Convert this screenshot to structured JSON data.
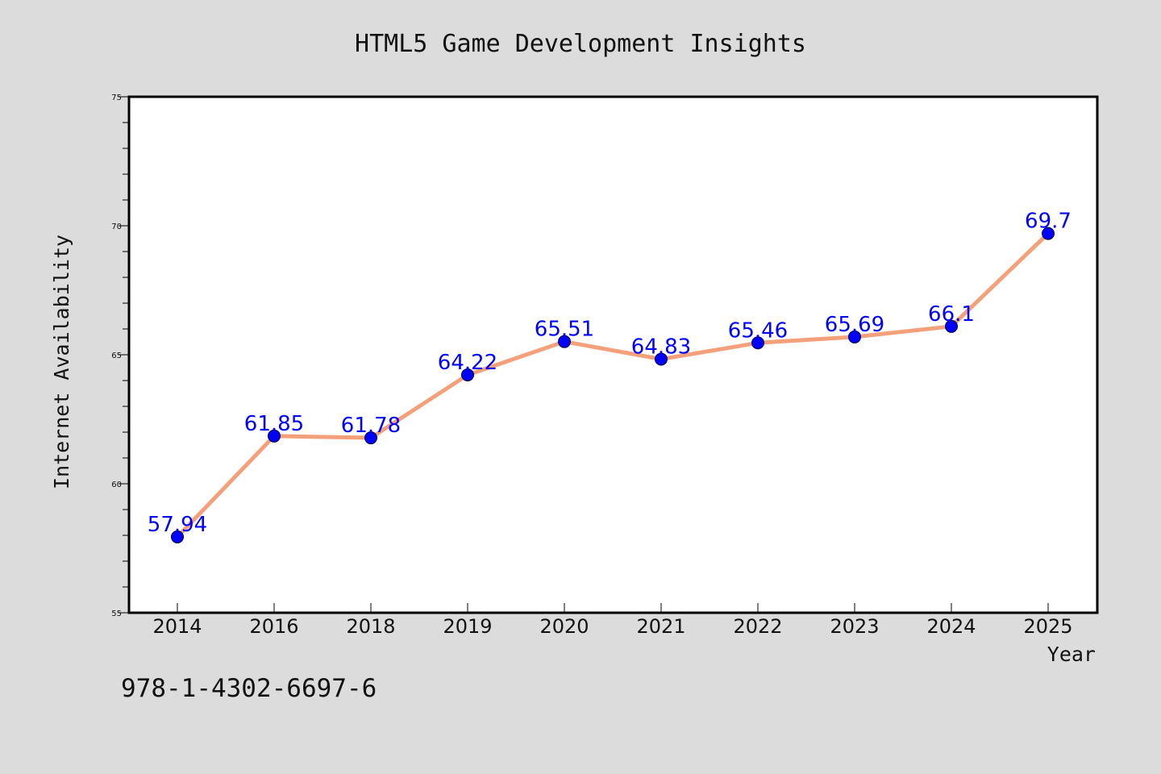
{
  "chart_data": {
    "type": "line",
    "title": "HTML5 Game Development Insights",
    "xlabel": "Year",
    "ylabel": "Internet Availability",
    "categories": [
      "2014",
      "2016",
      "2018",
      "2019",
      "2020",
      "2021",
      "2022",
      "2023",
      "2024",
      "2025"
    ],
    "values": [
      57.94,
      61.85,
      61.78,
      64.22,
      65.51,
      64.83,
      65.46,
      65.69,
      66.1,
      69.7
    ],
    "data_labels": [
      "57.94",
      "61.85",
      "61.78",
      "64.22",
      "65.51",
      "64.83",
      "65.46",
      "65.69",
      "66.1",
      "69.7"
    ],
    "ylim": [
      55,
      75
    ],
    "yticks": [
      55,
      60,
      65,
      70,
      75
    ],
    "ytick_labels": [
      "55",
      "60",
      "65",
      "70",
      "75"
    ],
    "grid": false,
    "line_color": "#f4a07a",
    "marker_color": "#0000ff",
    "label_color": "#0000ff",
    "background_color": "#dcdcdc",
    "plot_background": "#ffffff"
  },
  "footer": {
    "code": "978-1-4302-6697-6"
  }
}
